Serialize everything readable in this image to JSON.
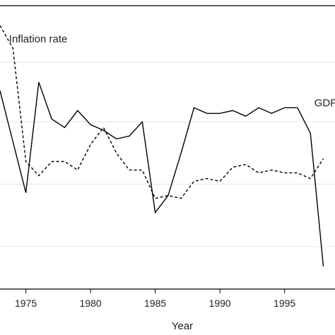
{
  "chart_data": {
    "type": "line",
    "xlabel": "Year",
    "ylabel": "",
    "xlim": [
      1973.0,
      1998.9
    ],
    "ylim": [
      0,
      100
    ],
    "x_ticks": [
      1975,
      1980,
      1985,
      1990,
      1995
    ],
    "x_tick_labels": [
      "1975",
      "1980",
      "1985",
      "1990",
      "1995"
    ],
    "y_gridlines": [
      15,
      37,
      59,
      80
    ],
    "grid": true,
    "legend": "none",
    "annotations": [
      {
        "text": "Inflation rate",
        "x": 1973.7,
        "y": 87.0,
        "series": "Inflation rate"
      },
      {
        "text": "GDP",
        "x": 1997.3,
        "y": 64.5,
        "series": "GDP"
      }
    ],
    "series": [
      {
        "name": "GDP",
        "style": "solid",
        "x": [
          1973,
          1974,
          1975,
          1976,
          1977,
          1978,
          1979,
          1980,
          1981,
          1982,
          1983,
          1984,
          1985,
          1986,
          1987,
          1988,
          1989,
          1990,
          1991,
          1992,
          1993,
          1994,
          1995,
          1996,
          1997,
          1998
        ],
        "y": [
          70,
          52,
          34,
          73,
          60,
          57,
          63,
          58,
          56,
          53,
          54,
          59,
          27,
          33,
          48,
          64,
          62,
          62,
          63,
          61,
          64,
          62,
          64,
          64,
          55,
          8
        ]
      },
      {
        "name": "Inflation rate",
        "style": "dashed",
        "x": [
          1973,
          1974,
          1975,
          1976,
          1977,
          1978,
          1979,
          1980,
          1981,
          1982,
          1983,
          1984,
          1985,
          1986,
          1987,
          1988,
          1989,
          1990,
          1991,
          1992,
          1993,
          1994,
          1995,
          1996,
          1997,
          1998
        ],
        "y": [
          93,
          85,
          45,
          40,
          45,
          45,
          42,
          51,
          57,
          48,
          42,
          42,
          32,
          33,
          32,
          38,
          39,
          38,
          43,
          44,
          41,
          42,
          41,
          41,
          39,
          46
        ]
      }
    ]
  }
}
